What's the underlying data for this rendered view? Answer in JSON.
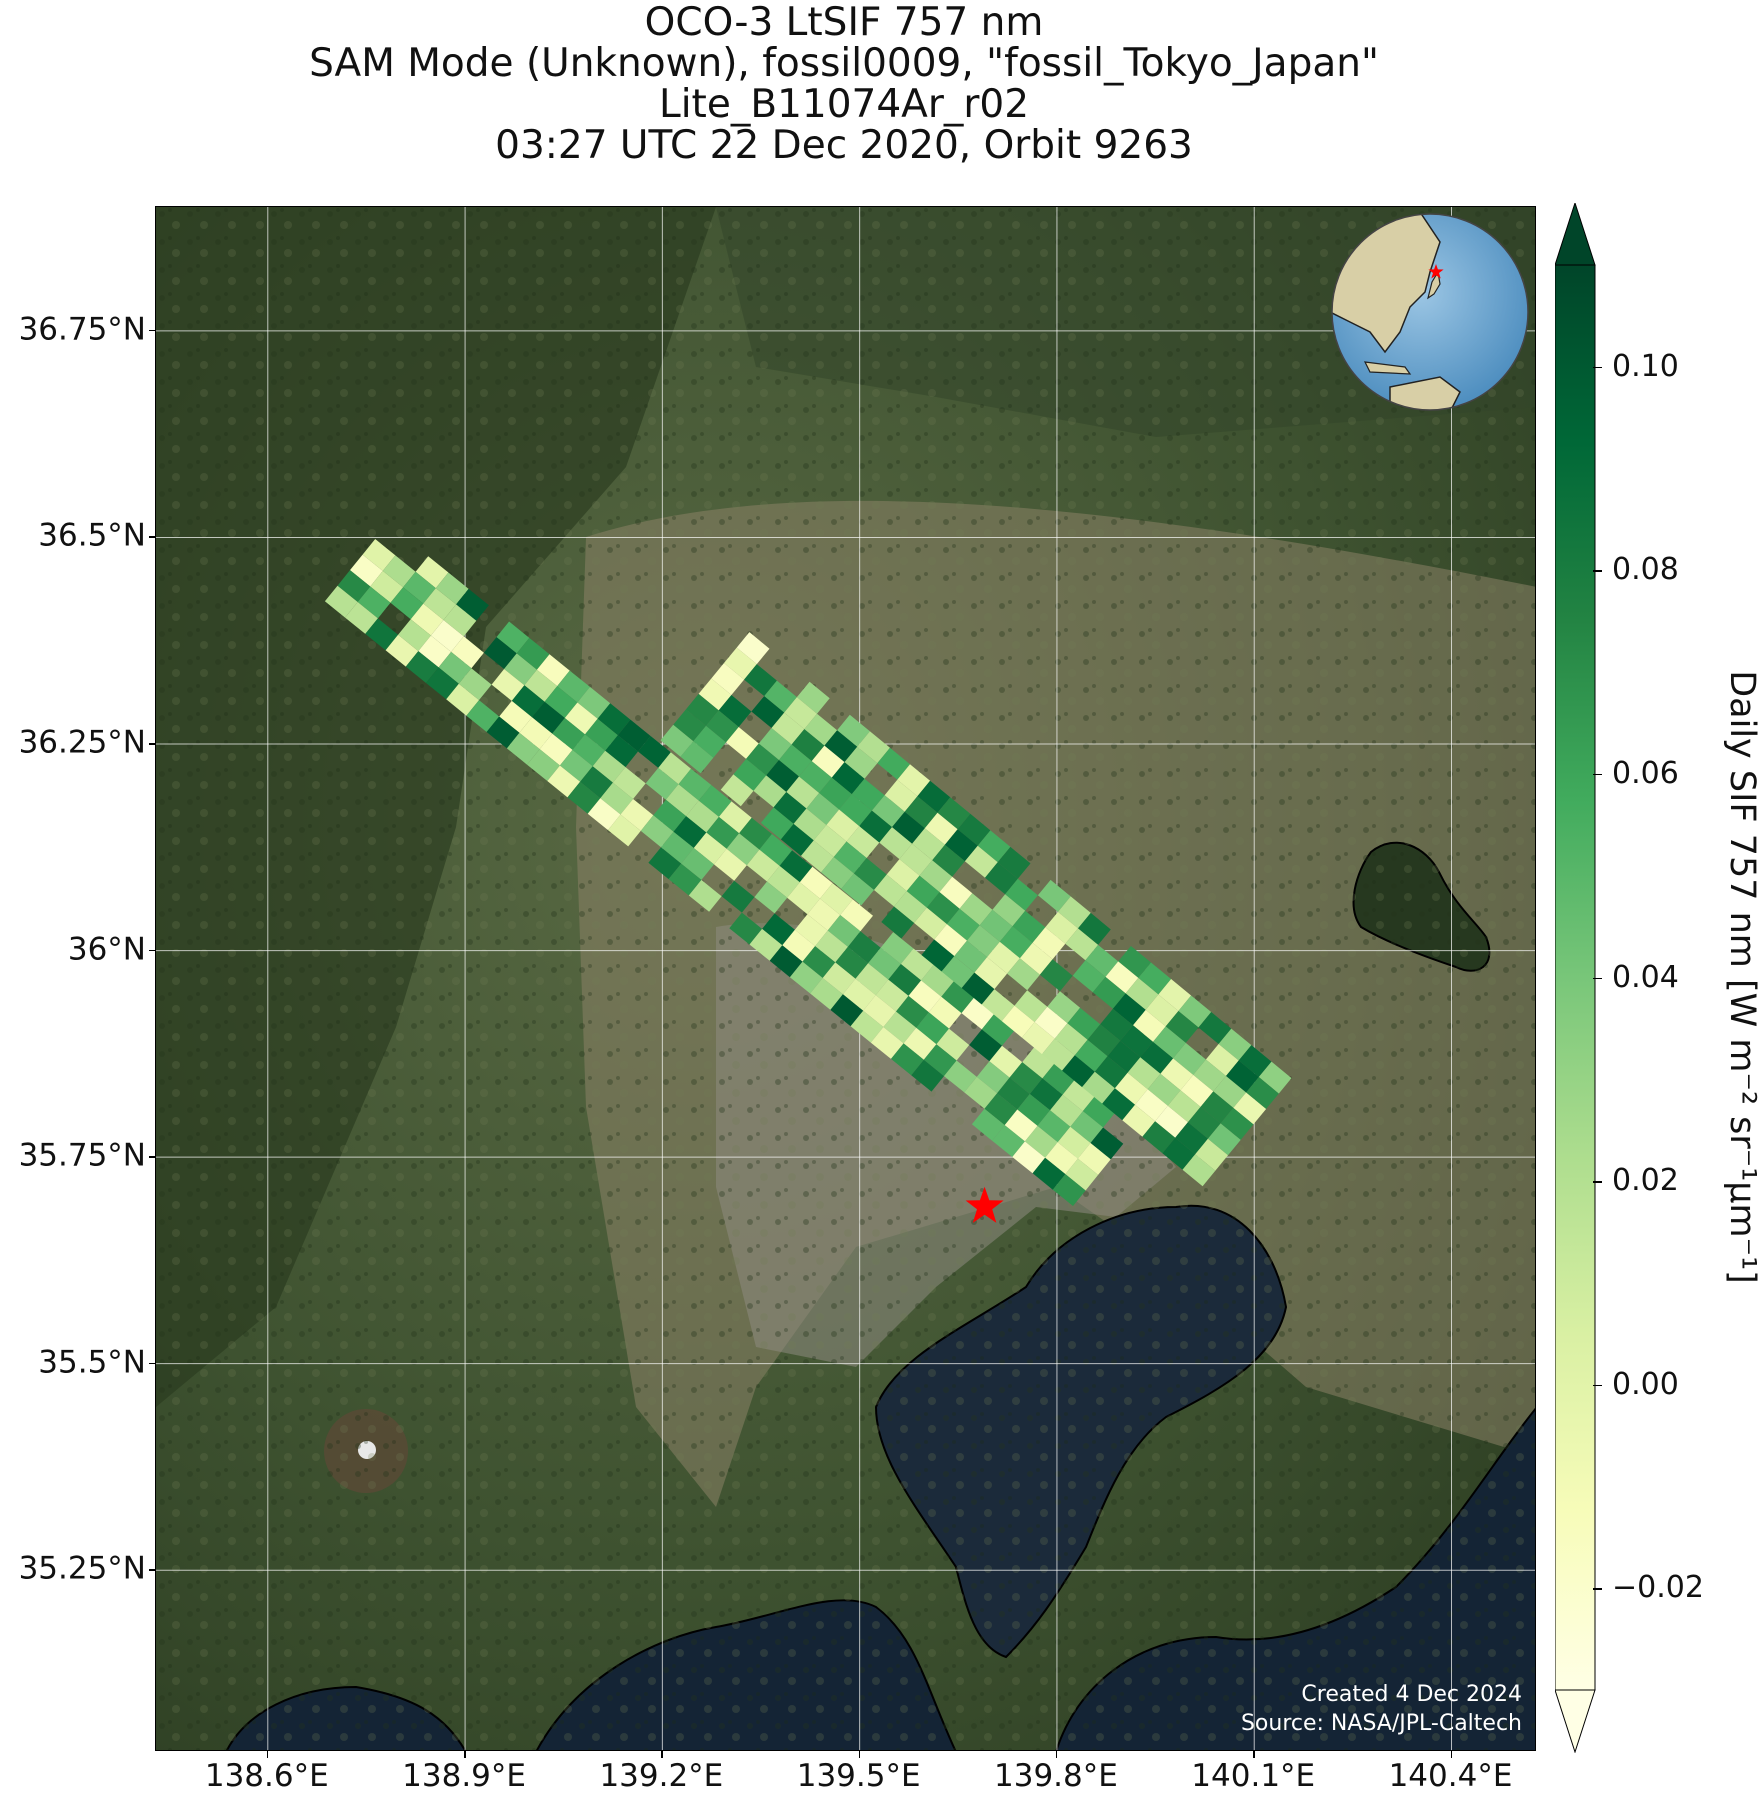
{
  "title": {
    "line1": "OCO-3 LtSIF 757 nm",
    "line2": "SAM Mode (Unknown), fossil0009, \"fossil_Tokyo_Japan\"",
    "line3": "Lite_B11074Ar_r02",
    "line4": "03:27 UTC 22 Dec 2020, Orbit 9263"
  },
  "map": {
    "lon_range": [
      138.43,
      140.53
    ],
    "lat_range": [
      35.03,
      36.9
    ],
    "lon_ticks": [
      "138.6°E",
      "138.9°E",
      "139.2°E",
      "139.5°E",
      "139.8°E",
      "140.1°E",
      "140.4°E"
    ],
    "lat_ticks": [
      "36.75°N",
      "36.5°N",
      "36.25°N",
      "36°N",
      "35.75°N",
      "35.5°N",
      "35.25°N"
    ],
    "grid": true,
    "basemap": "satellite imagery",
    "target_marker": {
      "lon": 139.69,
      "lat": 35.69,
      "color": "#ff0000",
      "symbol": "star-icon"
    },
    "credits": {
      "created": "Created 4 Dec 2024",
      "source": "Source: NASA/JPL-Caltech"
    },
    "inset_globe": {
      "marker_color": "#ff0000",
      "ocean_color": "#6fa8d2",
      "land_color": "#cbb98f"
    }
  },
  "colorbar": {
    "label": "Daily SIF 757 nm [W m⁻² sr⁻¹μm⁻¹]",
    "ticks": [
      "0.10",
      "0.08",
      "0.06",
      "0.04",
      "0.02",
      "0.00",
      "−0.02"
    ],
    "vmin": -0.03,
    "vmax": 0.11,
    "colormap": [
      "#ffffe5",
      "#f7fcb9",
      "#d9f0a3",
      "#addd8e",
      "#78c679",
      "#41ab5d",
      "#238443",
      "#006837",
      "#004529"
    ],
    "extend": "both"
  },
  "chart_data": {
    "type": "scatter",
    "xlabel": "",
    "ylabel": "",
    "colorbar_label": "Daily SIF 757 nm [W m⁻² sr⁻¹μm⁻¹]",
    "note_values": "approximate swath centerlines (lon, lat) of the two SIF stripes; SIF values range about -0.02 to 0.10",
    "series": [
      {
        "name": "",
        "swath": [
          [
            138.75,
            36.46
          ],
          [
            139.9,
            35.72
          ]
        ]
      },
      {
        "name": "",
        "swath": [
          [
            139.28,
            36.31
          ],
          [
            140.12,
            35.76
          ]
        ]
      }
    ],
    "value_range": [
      -0.02,
      0.1
    ]
  }
}
